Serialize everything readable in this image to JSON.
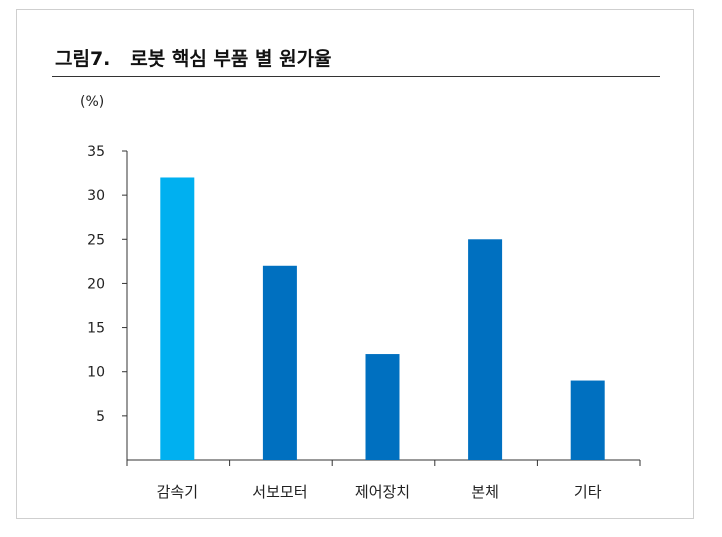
{
  "figure": {
    "label": "그림7.",
    "title": "로봇 핵심 부품 별 원가율"
  },
  "colors": {
    "highlight": "#00b0f0",
    "bar": "#0070c0",
    "axis": "#333333"
  },
  "chart_data": {
    "type": "bar",
    "title": "로봇 핵심 부품 별 원가율",
    "unit_label": "(%)",
    "xlabel": "",
    "ylabel": "",
    "categories": [
      "감속기",
      "서보모터",
      "제어장치",
      "본체",
      "기타"
    ],
    "values": [
      32,
      22,
      12,
      25,
      9
    ],
    "highlight_index": 0,
    "ylim": [
      0,
      35
    ],
    "yticks": [
      5,
      10,
      15,
      20,
      25,
      30,
      35
    ],
    "grid": false,
    "legend": "none"
  }
}
